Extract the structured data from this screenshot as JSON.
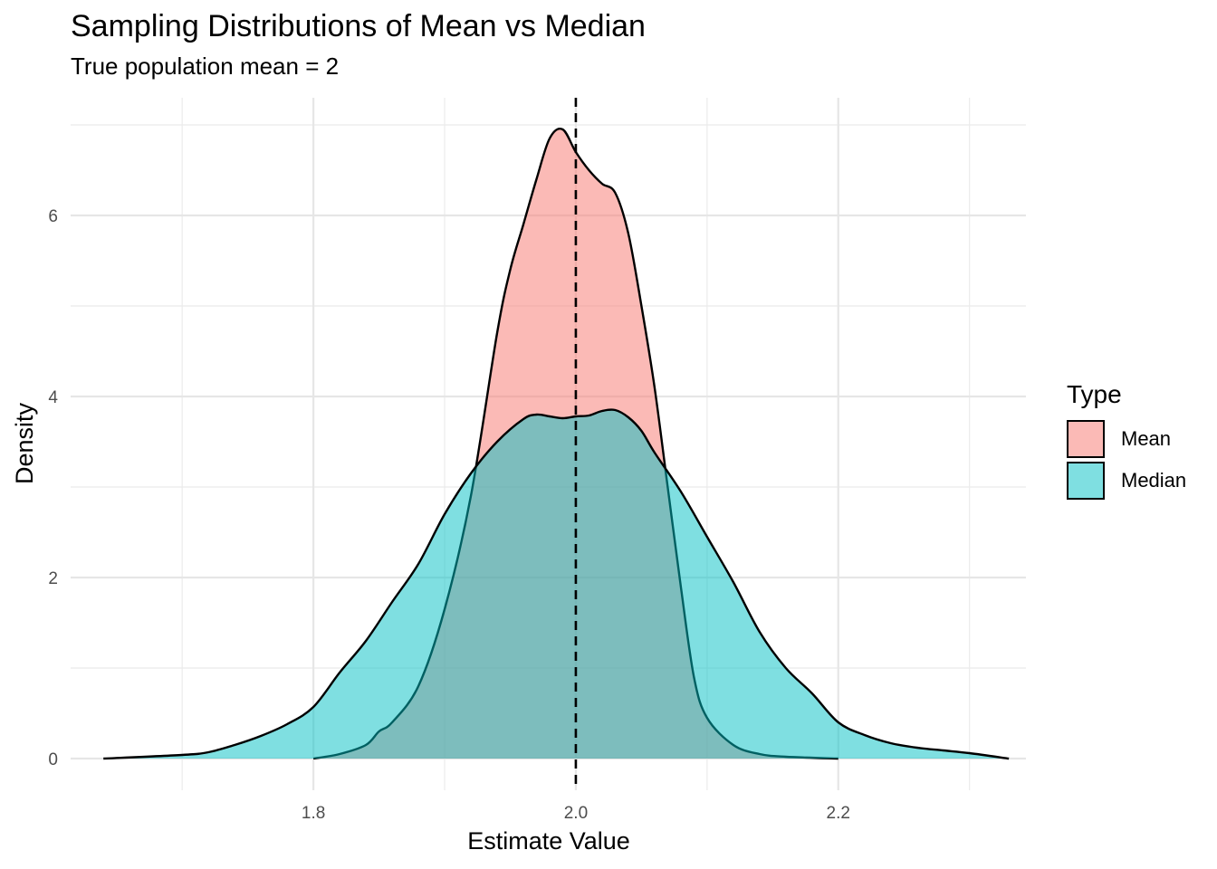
{
  "chart_data": {
    "type": "area",
    "title": "Sampling Distributions of Mean vs Median",
    "subtitle": "True population mean = 2",
    "xlabel": "Estimate Value",
    "ylabel": "Density",
    "xlim": [
      1.615,
      2.343
    ],
    "ylim": [
      -0.35,
      7.3
    ],
    "x_ticks": [
      1.8,
      2.0,
      2.2
    ],
    "x_tick_labels": [
      "1.8",
      "2.0",
      "2.2"
    ],
    "y_ticks": [
      0,
      2,
      4,
      6
    ],
    "y_tick_labels": [
      "0",
      "2",
      "4",
      "6"
    ],
    "reference_line": {
      "x": 2.0,
      "style": "dashed"
    },
    "grid": true,
    "legend": {
      "title": "Type",
      "position": "right"
    },
    "series": [
      {
        "name": "Mean",
        "color": "#F8766D",
        "x": [
          1.8,
          1.82,
          1.84,
          1.85,
          1.86,
          1.88,
          1.9,
          1.92,
          1.94,
          1.95,
          1.96,
          1.97,
          1.98,
          1.99,
          2.0,
          2.01,
          2.02,
          2.03,
          2.04,
          2.05,
          2.06,
          2.07,
          2.08,
          2.09,
          2.1,
          2.12,
          2.14,
          2.16,
          2.2
        ],
        "y": [
          0.0,
          0.05,
          0.15,
          0.3,
          0.4,
          0.8,
          1.65,
          2.9,
          4.7,
          5.4,
          5.9,
          6.4,
          6.85,
          6.95,
          6.7,
          6.5,
          6.35,
          6.25,
          5.8,
          5.0,
          4.1,
          3.0,
          1.9,
          0.9,
          0.45,
          0.15,
          0.05,
          0.02,
          0.0
        ]
      },
      {
        "name": "Median",
        "color": "#00BFC4",
        "x": [
          1.64,
          1.7,
          1.72,
          1.74,
          1.76,
          1.78,
          1.8,
          1.82,
          1.84,
          1.86,
          1.88,
          1.9,
          1.92,
          1.94,
          1.96,
          1.97,
          1.98,
          1.99,
          2.0,
          2.01,
          2.02,
          2.03,
          2.04,
          2.05,
          2.06,
          2.08,
          2.1,
          2.12,
          2.14,
          2.16,
          2.18,
          2.2,
          2.22,
          2.24,
          2.26,
          2.28,
          2.3,
          2.33
        ],
        "y": [
          0.0,
          0.04,
          0.07,
          0.15,
          0.25,
          0.38,
          0.57,
          0.95,
          1.3,
          1.73,
          2.15,
          2.7,
          3.15,
          3.5,
          3.75,
          3.8,
          3.78,
          3.76,
          3.78,
          3.79,
          3.84,
          3.85,
          3.77,
          3.62,
          3.38,
          2.95,
          2.45,
          1.95,
          1.4,
          1.0,
          0.72,
          0.4,
          0.26,
          0.17,
          0.12,
          0.09,
          0.06,
          0.0
        ]
      }
    ]
  }
}
